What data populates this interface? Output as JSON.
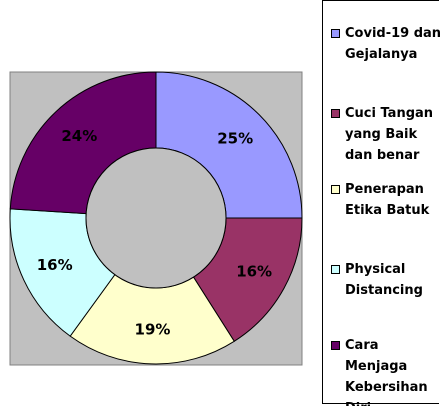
{
  "chart_data": {
    "type": "donut",
    "categories": [
      "Covid-19 dan Gejalanya",
      "Cuci Tangan yang Baik dan benar",
      "Penerapan Etika Batuk",
      "Physical Distancing",
      "Cara Menjaga Kebersihan Diri"
    ],
    "values": [
      25,
      16,
      19,
      16,
      24
    ],
    "value_labels": [
      "25%",
      "16%",
      "19%",
      "16%",
      "24%"
    ],
    "colors": [
      "#9999ff",
      "#993366",
      "#ffffcc",
      "#ccffff",
      "#660066"
    ],
    "legend": "right"
  }
}
